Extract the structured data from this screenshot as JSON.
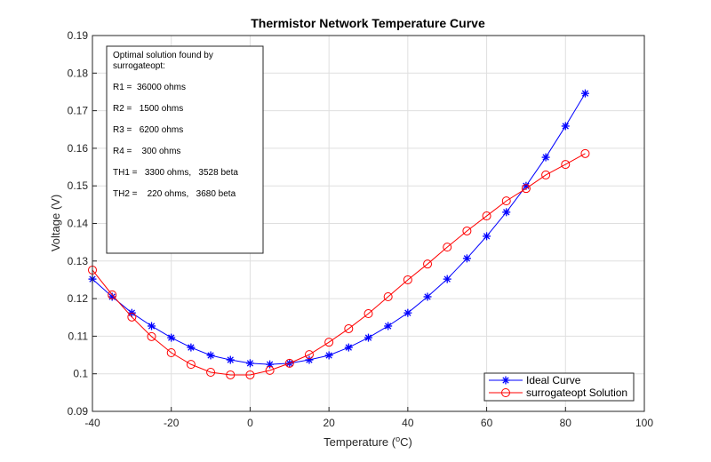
{
  "chart_data": {
    "type": "line",
    "title": "Thermistor Network Temperature Curve",
    "xlabel": "Temperature (",
    "xlabel_sup": "o",
    "xlabel_suffix": "C)",
    "ylabel": "Voltage (V)",
    "xlim": [
      -40,
      100
    ],
    "ylim": [
      0.09,
      0.19
    ],
    "grid": true,
    "xticks": [
      -40,
      -20,
      0,
      20,
      40,
      60,
      80,
      100
    ],
    "xtick_labels": [
      "-40",
      "-20",
      "0",
      "20",
      "40",
      "60",
      "80",
      "100"
    ],
    "yticks": [
      0.09,
      0.1,
      0.11,
      0.12,
      0.13,
      0.14,
      0.15,
      0.16,
      0.17,
      0.18,
      0.19
    ],
    "ytick_labels": [
      "0.09",
      "0.1",
      "0.11",
      "0.12",
      "0.13",
      "0.14",
      "0.15",
      "0.16",
      "0.17",
      "0.18",
      "0.19"
    ],
    "legend_placement": "bottom-right",
    "x": [
      -40,
      -35,
      -30,
      -25,
      -20,
      -15,
      -10,
      -5,
      0,
      5,
      10,
      15,
      20,
      25,
      30,
      35,
      40,
      45,
      50,
      55,
      60,
      65,
      70,
      75,
      80,
      85
    ],
    "series": [
      {
        "name": "Ideal Curve",
        "color": "#0000ff",
        "marker": "asterisk",
        "values": [
          0.1252,
          0.1205,
          0.1162,
          0.1127,
          0.1096,
          0.107,
          0.1049,
          0.1037,
          0.1028,
          0.1025,
          0.1028,
          0.1037,
          0.1049,
          0.107,
          0.1096,
          0.1127,
          0.1162,
          0.1205,
          0.1252,
          0.1307,
          0.1366,
          0.143,
          0.15,
          0.1576,
          0.1659,
          0.1746
        ]
      },
      {
        "name": "surrogateopt Solution",
        "color": "#ff0000",
        "marker": "circle",
        "values": [
          0.1276,
          0.121,
          0.1151,
          0.1099,
          0.1056,
          0.1025,
          0.1004,
          0.0997,
          0.0997,
          0.1009,
          0.1028,
          0.1051,
          0.1084,
          0.112,
          0.116,
          0.1205,
          0.125,
          0.1292,
          0.1337,
          0.138,
          0.142,
          0.146,
          0.1493,
          0.1529,
          0.1557,
          0.1586
        ]
      }
    ],
    "annotation": [
      "Optimal solution found by",
      "surrogateopt:",
      "R1 =  36000 ohms",
      "R2 =   1500 ohms",
      "R3 =   6200 ohms",
      "R4 =    300 ohms",
      "TH1 =   3300 ohms,   3528 beta",
      "TH2 =    220 ohms,   3680 beta"
    ]
  }
}
